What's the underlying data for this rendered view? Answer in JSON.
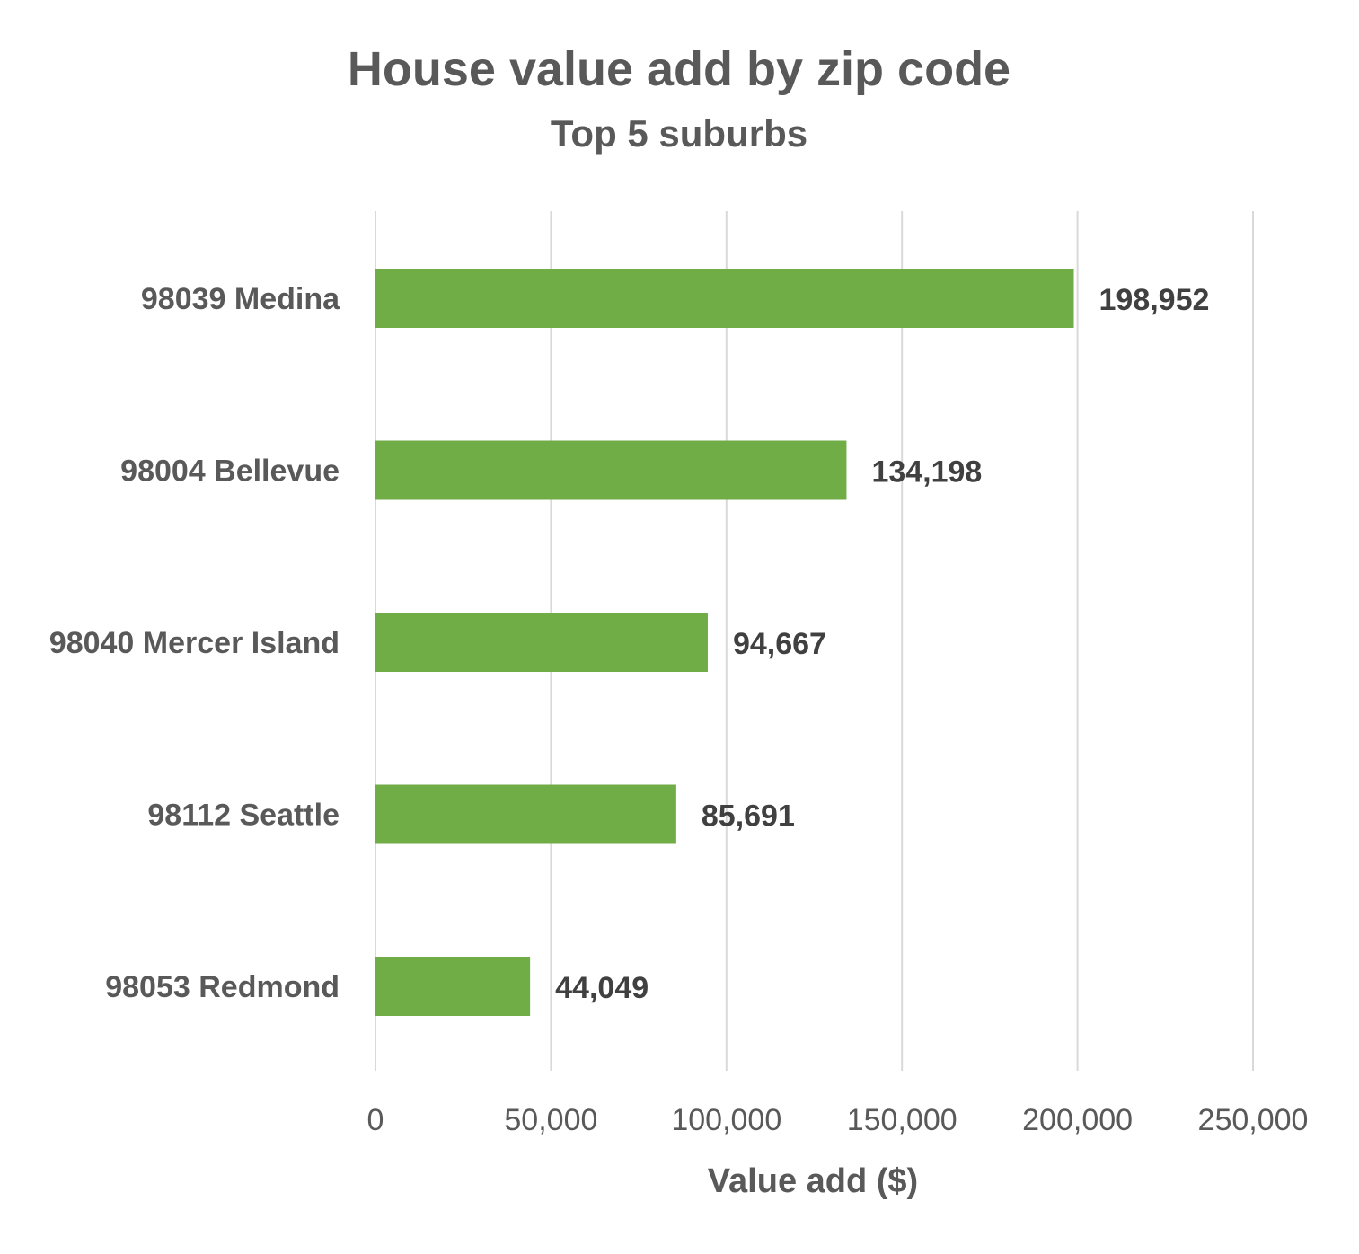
{
  "chart_data": {
    "type": "bar",
    "orientation": "horizontal",
    "title": "House value add by zip code",
    "subtitle": "Top 5 suburbs",
    "xlabel": "Value add ($)",
    "ylabel": "",
    "categories": [
      "98039 Medina",
      "98004 Bellevue",
      "98040 Mercer Island",
      "98112 Seattle",
      "98053 Redmond"
    ],
    "values": [
      198952,
      134198,
      94667,
      85691,
      44049
    ],
    "data_labels": [
      "198,952",
      "134,198",
      "94,667",
      "85,691",
      "44,049"
    ],
    "xlim": [
      0,
      250000
    ],
    "x_ticks": [
      0,
      50000,
      100000,
      150000,
      200000,
      250000
    ],
    "x_tick_labels": [
      "0",
      "50,000",
      "100,000",
      "150,000",
      "200,000",
      "250,000"
    ],
    "grid": true,
    "legend": "none",
    "bar_color": "#70AD47",
    "gridline_color": "#D9D9D9",
    "text_color": "#595959",
    "data_label_color": "#404040"
  }
}
